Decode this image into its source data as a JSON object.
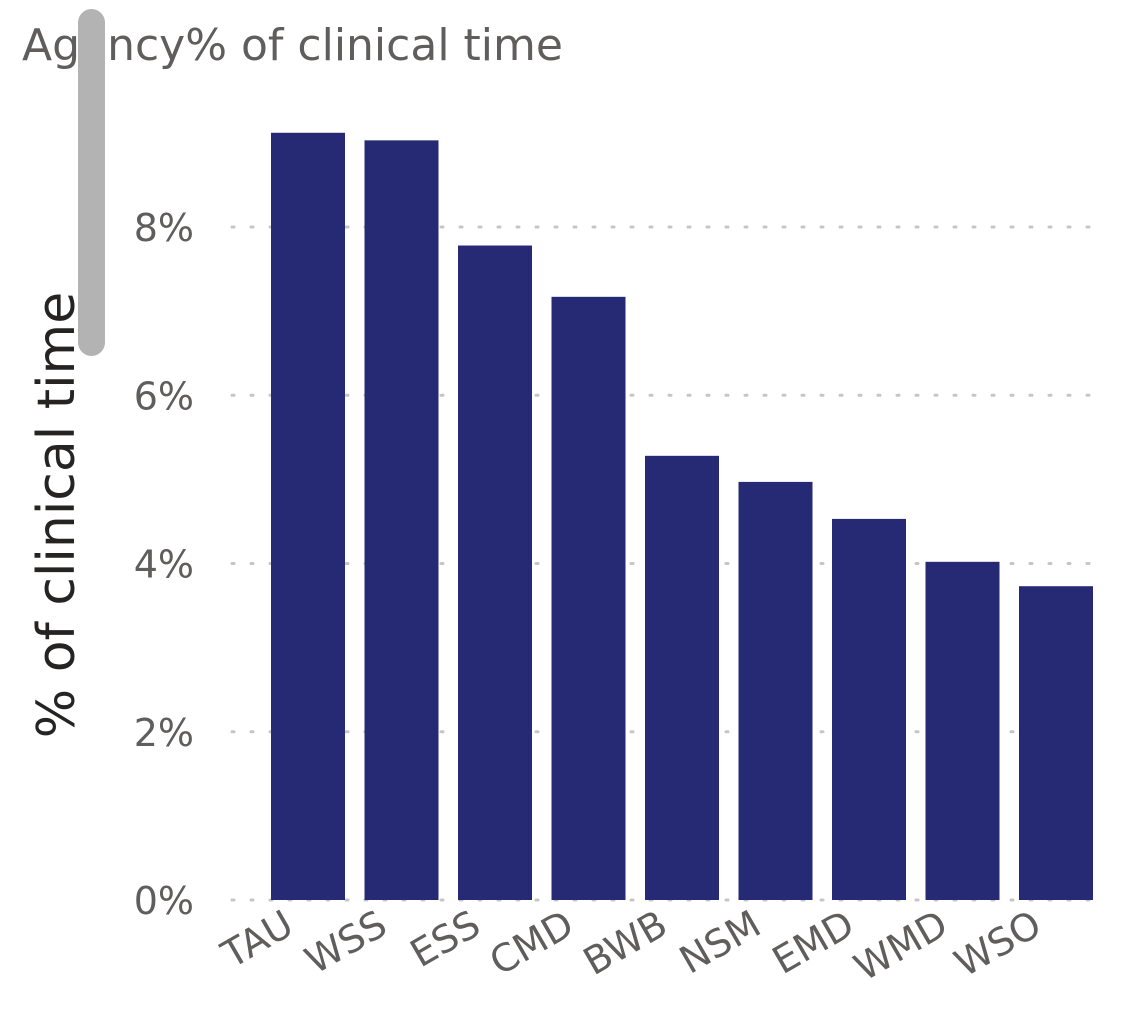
{
  "chart_data": {
    "type": "bar",
    "title": "Agency% of clinical time",
    "xlabel": "",
    "ylabel": "% of clinical time",
    "categories": [
      "TAU",
      "WSS",
      "ESS",
      "CMD",
      "BWB",
      "NSM",
      "EMD",
      "WMD",
      "WSO"
    ],
    "values": [
      9.12,
      9.03,
      7.78,
      7.17,
      5.28,
      4.97,
      4.53,
      4.02,
      3.73
    ],
    "ylim": [
      0,
      10
    ],
    "yticks": [
      0,
      2,
      4,
      6,
      8
    ],
    "ytick_labels": [
      "0%",
      "2%",
      "4%",
      "6%",
      "8%"
    ],
    "grid": true,
    "legend": "none",
    "bar_color": "#262A74",
    "grid_color": "#C8C6C4"
  }
}
